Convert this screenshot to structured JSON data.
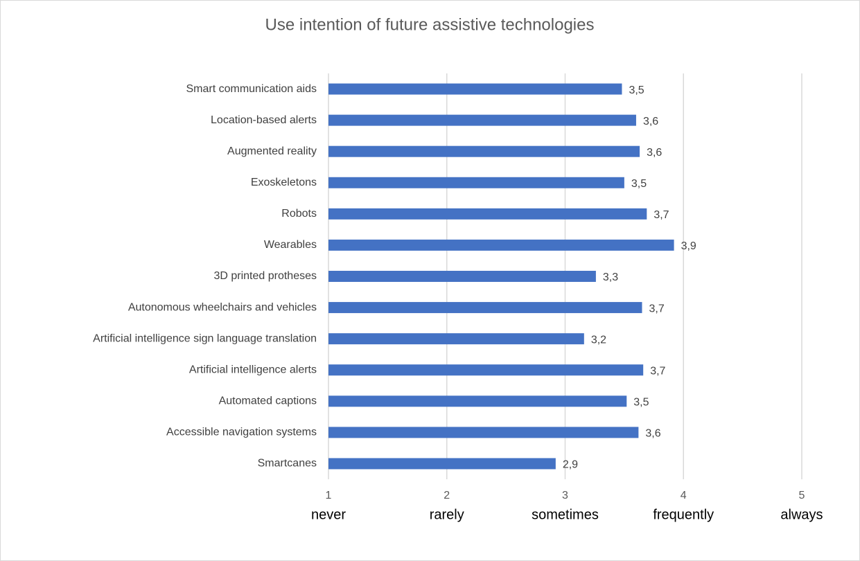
{
  "chart_data": {
    "type": "bar",
    "orientation": "horizontal",
    "title": "Use intention of future assistive technologies",
    "categories": [
      "Smart communication aids",
      "Location-based alerts",
      "Augmented reality",
      "Exoskeletons",
      "Robots",
      "Wearables",
      "3D printed protheses",
      "Autonomous wheelchairs and vehicles",
      "Artificial intelligence sign language translation",
      "Artificial intelligence alerts",
      "Automated captions",
      "Accessible navigation systems",
      "Smartcanes"
    ],
    "values": [
      3.48,
      3.6,
      3.63,
      3.5,
      3.69,
      3.92,
      3.26,
      3.65,
      3.16,
      3.66,
      3.52,
      3.62,
      2.92
    ],
    "value_labels": [
      "3,5",
      "3,6",
      "3,6",
      "3,5",
      "3,7",
      "3,9",
      "3,3",
      "3,7",
      "3,2",
      "3,7",
      "3,5",
      "3,6",
      "2,9"
    ],
    "color": "#4472c4",
    "xlim": [
      1,
      5
    ],
    "xticks": [
      1,
      2,
      3,
      4,
      5
    ],
    "scale_labels": [
      "never",
      "rarely",
      "sometimes",
      "frequently",
      "always"
    ],
    "grid": true
  }
}
